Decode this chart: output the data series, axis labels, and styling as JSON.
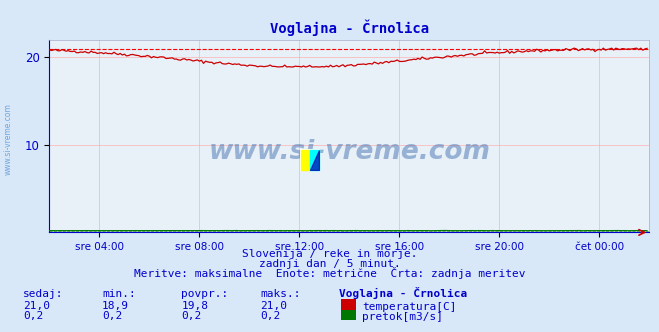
{
  "title": "Voglajna - Črnolica",
  "bg_color": "#d8e8f8",
  "plot_bg_color": "#e8f0f8",
  "grid_color": "#ffaaaa",
  "title_color": "#0000cc",
  "tick_label_color": "#0000cc",
  "temp_line_color": "#cc0000",
  "temp_max_line_color": "#ff0000",
  "flow_line_color": "#007700",
  "watermark_color": "#3366aa",
  "side_watermark_color": "#4488cc",
  "xlim": [
    0,
    288
  ],
  "ylim": [
    0,
    22.0
  ],
  "yticks": [
    10,
    20
  ],
  "xtick_positions": [
    24,
    72,
    120,
    168,
    216,
    264
  ],
  "xtick_labels": [
    "sre 04:00",
    "sre 08:00",
    "sre 12:00",
    "sre 16:00",
    "sre 20:00",
    "čet 00:00"
  ],
  "subtitle1": "Slovenija / reke in morje.",
  "subtitle2": "zadnji dan / 5 minut.",
  "subtitle3": "Meritve: maksimalne  Enote: metrične  Črta: zadnja meritev",
  "stats_header": [
    "sedaj:",
    "min.:",
    "povpr.:",
    "maks.:",
    "Voglajna - Črnolica"
  ],
  "temp_stats": [
    21.0,
    18.9,
    19.8,
    21.0
  ],
  "flow_stats": [
    0.2,
    0.2,
    0.2,
    0.2
  ],
  "legend_temp": "temperatura[C]",
  "legend_flow": "pretok[m3/s]",
  "temp_max_value": 21.0,
  "num_points": 288
}
